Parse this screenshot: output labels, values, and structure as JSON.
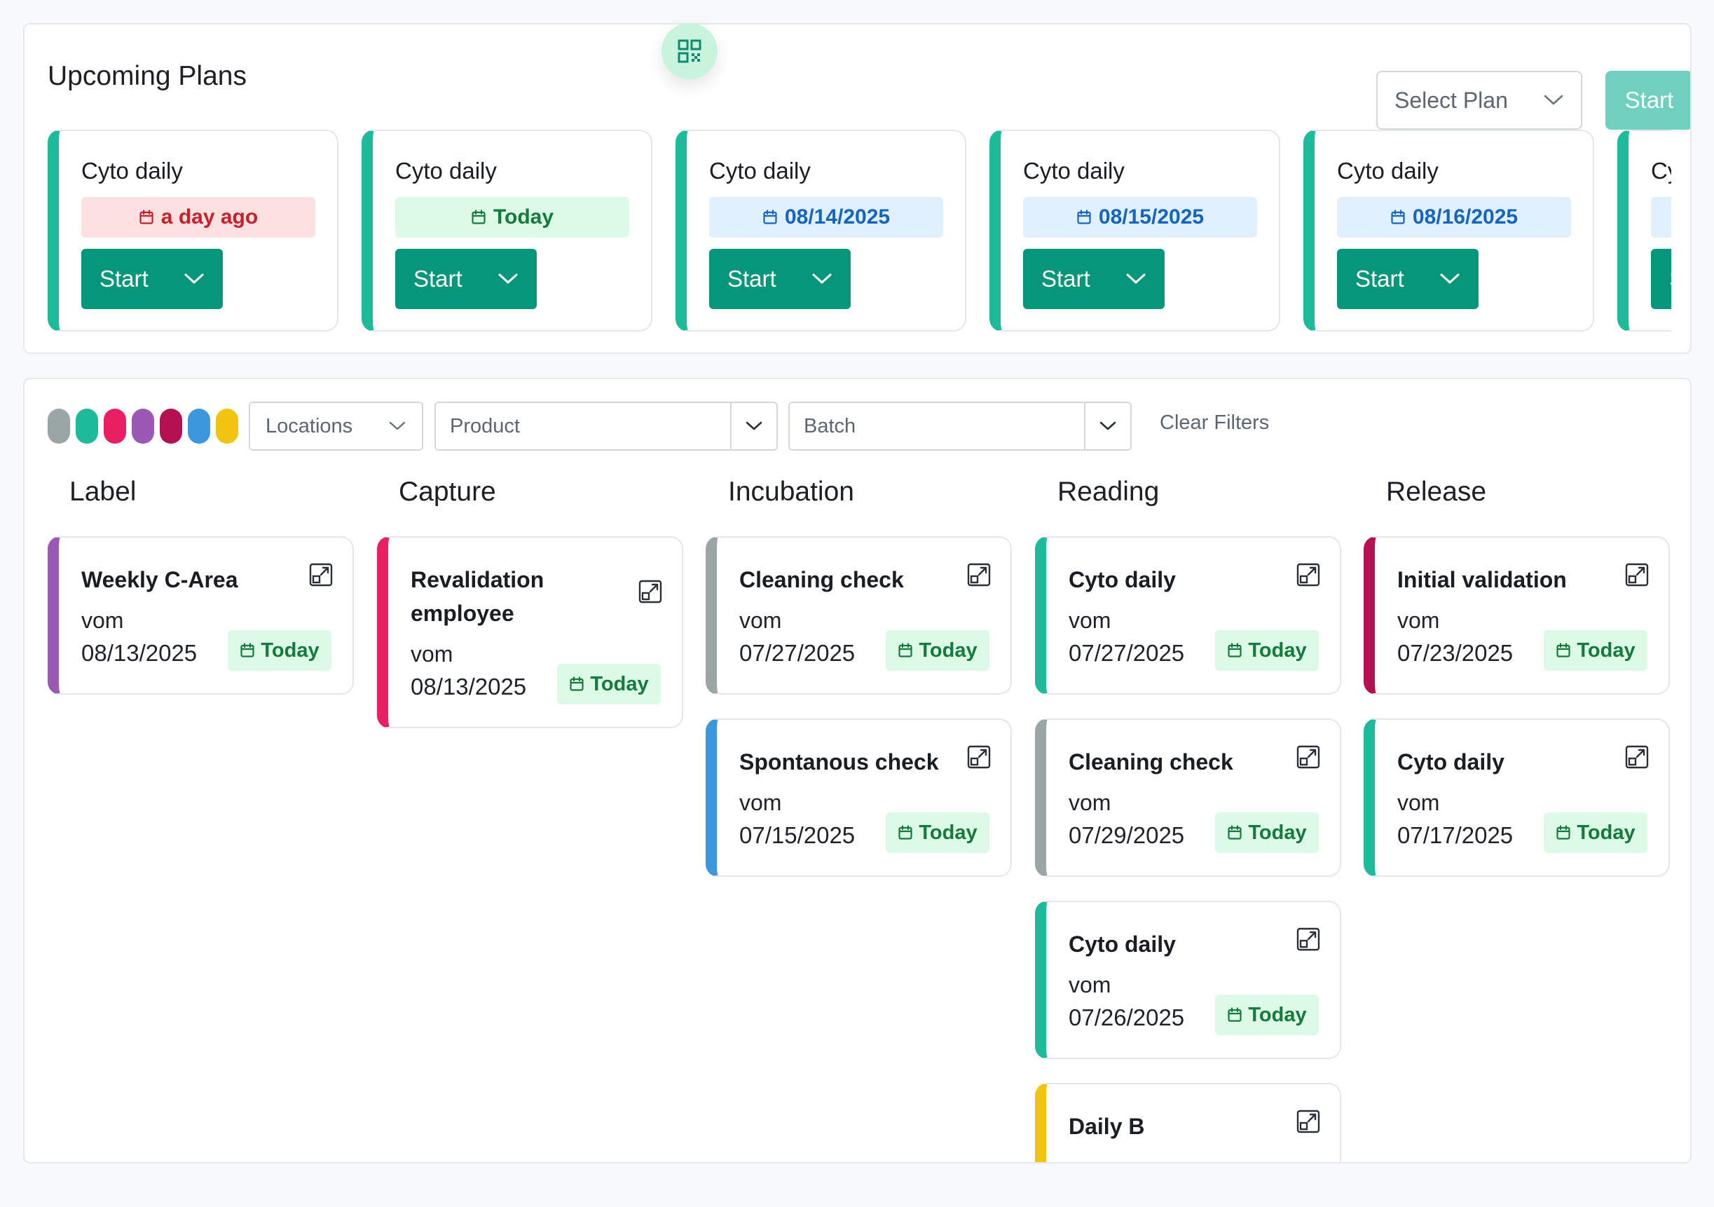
{
  "upcoming": {
    "title": "Upcoming Plans",
    "select_placeholder": "Select Plan",
    "start_label": "Start",
    "plans": [
      {
        "name": "Cyto daily",
        "date": "a day ago",
        "status": "overdue",
        "start": "Start"
      },
      {
        "name": "Cyto daily",
        "date": "Today",
        "status": "today",
        "start": "Start"
      },
      {
        "name": "Cyto daily",
        "date": "08/14/2025",
        "status": "upcoming",
        "start": "Start"
      },
      {
        "name": "Cyto daily",
        "date": "08/15/2025",
        "status": "upcoming",
        "start": "Start"
      },
      {
        "name": "Cyto daily",
        "date": "08/16/2025",
        "status": "upcoming",
        "start": "Start"
      },
      {
        "name": "Cyto daily",
        "date": "",
        "status": "upcoming",
        "start": "Start"
      }
    ]
  },
  "filters": {
    "swatch_colors": [
      "#9aa5a5",
      "#1dbb9a",
      "#ea1e63",
      "#9b59b6",
      "#b5104f",
      "#3d97dd",
      "#f1c40f"
    ],
    "locations_label": "Locations",
    "product_placeholder": "Product",
    "batch_placeholder": "Batch",
    "clear_label": "Clear Filters"
  },
  "board": {
    "columns": [
      {
        "title": "Label",
        "cards": [
          {
            "title": "Weekly C-Area",
            "vom": "vom",
            "date": "08/13/2025",
            "badge": "Today",
            "color": "#9b59b6"
          }
        ]
      },
      {
        "title": "Capture",
        "cards": [
          {
            "title": "Revalidation employee",
            "vom": "vom",
            "date": "08/13/2025",
            "badge": "Today",
            "color": "#ea1e63"
          }
        ]
      },
      {
        "title": "Incubation",
        "cards": [
          {
            "title": "Cleaning check",
            "vom": "vom",
            "date": "07/27/2025",
            "badge": "Today",
            "color": "#9aa5a5"
          },
          {
            "title": "Spontanous check",
            "vom": "vom",
            "date": "07/15/2025",
            "badge": "Today",
            "color": "#3d97dd"
          }
        ]
      },
      {
        "title": "Reading",
        "cards": [
          {
            "title": "Cyto daily",
            "vom": "vom",
            "date": "07/27/2025",
            "badge": "Today",
            "color": "#1dbb9a"
          },
          {
            "title": "Cleaning check",
            "vom": "vom",
            "date": "07/29/2025",
            "badge": "Today",
            "color": "#9aa5a5"
          },
          {
            "title": "Cyto daily",
            "vom": "vom",
            "date": "07/26/2025",
            "badge": "Today",
            "color": "#1dbb9a"
          },
          {
            "title": "Daily B",
            "vom": "",
            "date": "",
            "badge": "",
            "color": "#f1c40f"
          }
        ]
      },
      {
        "title": "Release",
        "cards": [
          {
            "title": "Initial validation",
            "vom": "vom",
            "date": "07/23/2025",
            "badge": "Today",
            "color": "#b5104f"
          },
          {
            "title": "Cyto daily",
            "vom": "vom",
            "date": "07/17/2025",
            "badge": "Today",
            "color": "#1dbb9a"
          }
        ]
      }
    ]
  },
  "colors": {
    "accent": "#069679",
    "start_disabled": "#6fd1bd",
    "qr_bg": "#c8f3dd"
  }
}
